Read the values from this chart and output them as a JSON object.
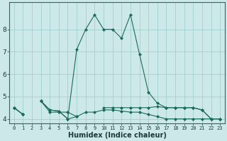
{
  "xlabel": "Humidex (Indice chaleur)",
  "x_values": [
    0,
    1,
    2,
    3,
    4,
    5,
    6,
    7,
    8,
    9,
    10,
    11,
    12,
    13,
    14,
    15,
    16,
    17,
    18,
    19,
    20,
    21,
    22,
    23
  ],
  "line1": [
    4.5,
    4.2,
    null,
    4.8,
    4.4,
    4.35,
    4.0,
    4.1,
    null,
    null,
    4.5,
    4.5,
    4.5,
    4.5,
    4.5,
    4.5,
    4.55,
    4.5,
    4.5,
    4.5,
    4.5,
    4.4,
    4.0,
    4.0
  ],
  "line2": [
    4.5,
    4.2,
    null,
    4.8,
    4.3,
    4.3,
    4.3,
    4.1,
    4.3,
    4.3,
    4.4,
    4.4,
    4.35,
    4.3,
    4.3,
    4.2,
    4.1,
    4.0,
    4.0,
    4.0,
    4.0,
    4.0,
    4.0,
    4.0
  ],
  "line3": [
    4.5,
    4.2,
    null,
    4.8,
    4.4,
    4.35,
    4.0,
    7.1,
    8.0,
    8.65,
    8.0,
    8.0,
    7.6,
    8.65,
    6.9,
    5.2,
    4.7,
    4.5,
    4.5,
    4.5,
    4.5,
    4.4,
    4.0,
    4.0
  ],
  "line_color": "#1a6b5a",
  "bg_color": "#cce8e8",
  "grid_color": "#99cccc",
  "ylim": [
    3.8,
    9.2
  ],
  "yticks": [
    4,
    5,
    6,
    7,
    8
  ],
  "xlim": [
    -0.5,
    23.5
  ]
}
